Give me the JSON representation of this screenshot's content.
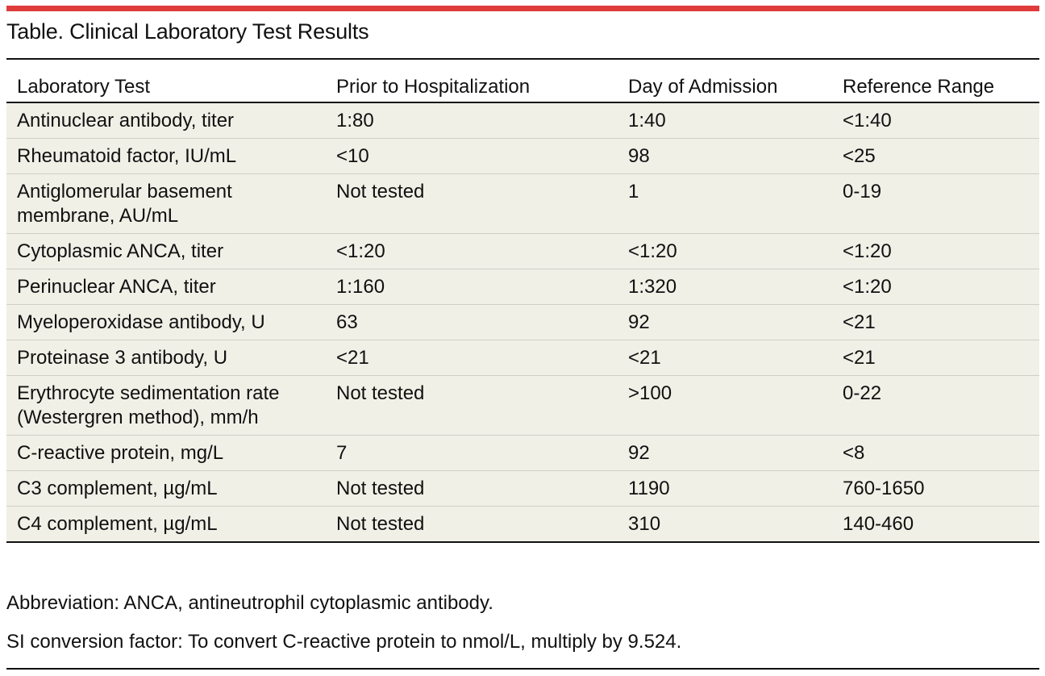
{
  "title": "Table. Clinical Laboratory Test Results",
  "columns": [
    "Laboratory Test",
    "Prior to Hospitalization",
    "Day of Admission",
    "Reference Range"
  ],
  "rows": [
    [
      "Antinuclear antibody, titer",
      "1:80",
      "1:40",
      "<1:40"
    ],
    [
      "Rheumatoid factor, IU/mL",
      "<10",
      "98",
      "<25"
    ],
    [
      "Antiglomerular basement membrane, AU/mL",
      "Not tested",
      "1",
      "0-19"
    ],
    [
      "Cytoplasmic ANCA, titer",
      "<1:20",
      "<1:20",
      "<1:20"
    ],
    [
      "Perinuclear ANCA, titer",
      "1:160",
      "1:320",
      "<1:20"
    ],
    [
      "Myeloperoxidase antibody, U",
      "63",
      "92",
      "<21"
    ],
    [
      "Proteinase 3 antibody, U",
      "<21",
      "<21",
      "<21"
    ],
    [
      "Erythrocyte sedimentation rate (Westergren method), mm/h",
      "Not tested",
      ">100",
      "0-22"
    ],
    [
      "C-reactive protein, mg/L",
      "7",
      "92",
      "<8"
    ],
    [
      "C3 complement, µg/mL",
      "Not tested",
      "1190",
      "760-1650"
    ],
    [
      "C4 complement, µg/mL",
      "Not tested",
      "310",
      "140-460"
    ]
  ],
  "footnotes": [
    "Abbreviation: ANCA, antineutrophil cytoplasmic antibody.",
    "SI conversion factor: To convert C-reactive protein to nmol/L, multiply by 9.524."
  ],
  "colors": {
    "accent_rule": "#e03c3c",
    "row_bg": "#f1f0e7"
  }
}
